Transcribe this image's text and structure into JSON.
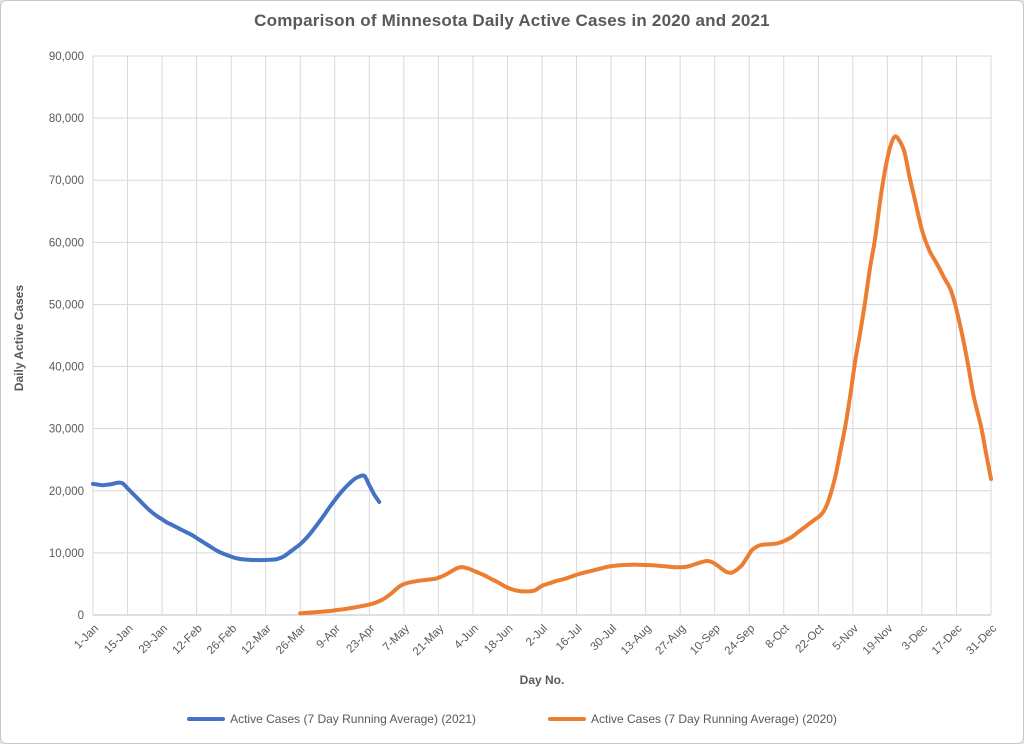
{
  "chart_data": {
    "type": "line",
    "title": "Comparison of Minnesota Daily Active Cases in 2020 and 2021",
    "xlabel": "Day No.",
    "ylabel": "Daily Active Cases",
    "grid": "both",
    "legend_position": "bottom",
    "x_axis": {
      "tick_labels": [
        "1-Jan",
        "15-Jan",
        "29-Jan",
        "12-Feb",
        "26-Feb",
        "12-Mar",
        "26-Mar",
        "9-Apr",
        "23-Apr",
        "7-May",
        "21-May",
        "4-Jun",
        "18-Jun",
        "2-Jul",
        "16-Jul",
        "30-Jul",
        "13-Aug",
        "27-Aug",
        "10-Sep",
        "24-Sep",
        "8-Oct",
        "22-Oct",
        "5-Nov",
        "19-Nov",
        "3-Dec",
        "17-Dec",
        "31-Dec"
      ],
      "tick_interval_days": 14,
      "range_days": [
        1,
        365
      ]
    },
    "y_axis": {
      "tick_labels": [
        "0",
        "10,000",
        "20,000",
        "30,000",
        "40,000",
        "50,000",
        "60,000",
        "70,000",
        "80,000",
        "90,000"
      ],
      "tick_values": [
        0,
        10000,
        20000,
        30000,
        40000,
        50000,
        60000,
        70000,
        80000,
        90000
      ],
      "range": [
        0,
        90000
      ]
    },
    "series": [
      {
        "name": "Active Cases (7 Day Running Average) (2021)",
        "color": "#4472C4",
        "points": [
          [
            1,
            21100
          ],
          [
            3,
            21000
          ],
          [
            5,
            20900
          ],
          [
            7,
            21000
          ],
          [
            9,
            21100
          ],
          [
            11,
            21300
          ],
          [
            13,
            21200
          ],
          [
            15,
            20400
          ],
          [
            17,
            19600
          ],
          [
            19,
            18800
          ],
          [
            21,
            18000
          ],
          [
            23,
            17200
          ],
          [
            25,
            16500
          ],
          [
            27,
            15900
          ],
          [
            29,
            15400
          ],
          [
            31,
            14900
          ],
          [
            33,
            14500
          ],
          [
            35,
            14100
          ],
          [
            37,
            13700
          ],
          [
            39,
            13300
          ],
          [
            41,
            12900
          ],
          [
            43,
            12400
          ],
          [
            45,
            11900
          ],
          [
            47,
            11400
          ],
          [
            49,
            10900
          ],
          [
            51,
            10400
          ],
          [
            53,
            10000
          ],
          [
            55,
            9700
          ],
          [
            57,
            9400
          ],
          [
            59,
            9150
          ],
          [
            61,
            9000
          ],
          [
            64,
            8900
          ],
          [
            67,
            8850
          ],
          [
            70,
            8850
          ],
          [
            73,
            8900
          ],
          [
            75,
            8950
          ],
          [
            77,
            9200
          ],
          [
            79,
            9600
          ],
          [
            81,
            10200
          ],
          [
            83,
            10800
          ],
          [
            85,
            11400
          ],
          [
            88,
            12600
          ],
          [
            91,
            14100
          ],
          [
            94,
            15700
          ],
          [
            97,
            17400
          ],
          [
            100,
            19000
          ],
          [
            103,
            20400
          ],
          [
            105,
            21200
          ],
          [
            107,
            21900
          ],
          [
            109,
            22300
          ],
          [
            111,
            22400
          ],
          [
            113,
            20900
          ],
          [
            115,
            19400
          ],
          [
            117,
            18200
          ]
        ]
      },
      {
        "name": "Active Cases (7 Day Running Average) (2020)",
        "color": "#ED7D31",
        "points": [
          [
            85,
            250
          ],
          [
            88,
            350
          ],
          [
            91,
            450
          ],
          [
            94,
            550
          ],
          [
            97,
            650
          ],
          [
            100,
            800
          ],
          [
            103,
            950
          ],
          [
            106,
            1150
          ],
          [
            109,
            1350
          ],
          [
            112,
            1600
          ],
          [
            115,
            1900
          ],
          [
            118,
            2400
          ],
          [
            120,
            2900
          ],
          [
            122,
            3500
          ],
          [
            124,
            4200
          ],
          [
            126,
            4800
          ],
          [
            128,
            5100
          ],
          [
            130,
            5300
          ],
          [
            133,
            5500
          ],
          [
            136,
            5650
          ],
          [
            139,
            5800
          ],
          [
            141,
            6000
          ],
          [
            144,
            6500
          ],
          [
            147,
            7200
          ],
          [
            149,
            7600
          ],
          [
            151,
            7700
          ],
          [
            153,
            7500
          ],
          [
            156,
            7000
          ],
          [
            159,
            6500
          ],
          [
            162,
            5900
          ],
          [
            165,
            5300
          ],
          [
            168,
            4600
          ],
          [
            171,
            4100
          ],
          [
            174,
            3850
          ],
          [
            177,
            3800
          ],
          [
            180,
            3950
          ],
          [
            183,
            4700
          ],
          [
            186,
            5100
          ],
          [
            189,
            5500
          ],
          [
            192,
            5800
          ],
          [
            195,
            6200
          ],
          [
            198,
            6600
          ],
          [
            201,
            6900
          ],
          [
            204,
            7200
          ],
          [
            207,
            7500
          ],
          [
            210,
            7800
          ],
          [
            213,
            7950
          ],
          [
            216,
            8050
          ],
          [
            219,
            8100
          ],
          [
            222,
            8100
          ],
          [
            225,
            8050
          ],
          [
            228,
            8000
          ],
          [
            231,
            7900
          ],
          [
            234,
            7800
          ],
          [
            237,
            7700
          ],
          [
            240,
            7700
          ],
          [
            243,
            7900
          ],
          [
            246,
            8300
          ],
          [
            248,
            8550
          ],
          [
            250,
            8700
          ],
          [
            252,
            8500
          ],
          [
            254,
            8000
          ],
          [
            256,
            7400
          ],
          [
            258,
            6900
          ],
          [
            260,
            6850
          ],
          [
            262,
            7300
          ],
          [
            264,
            8000
          ],
          [
            266,
            9200
          ],
          [
            268,
            10400
          ],
          [
            270,
            11000
          ],
          [
            272,
            11300
          ],
          [
            275,
            11400
          ],
          [
            278,
            11500
          ],
          [
            281,
            11900
          ],
          [
            284,
            12500
          ],
          [
            287,
            13400
          ],
          [
            290,
            14300
          ],
          [
            293,
            15200
          ],
          [
            296,
            16100
          ],
          [
            298,
            17300
          ],
          [
            300,
            19500
          ],
          [
            302,
            22500
          ],
          [
            304,
            26500
          ],
          [
            306,
            30500
          ],
          [
            308,
            35500
          ],
          [
            310,
            41000
          ],
          [
            312,
            45500
          ],
          [
            314,
            50500
          ],
          [
            316,
            56000
          ],
          [
            318,
            60500
          ],
          [
            320,
            66500
          ],
          [
            322,
            71500
          ],
          [
            324,
            75200
          ],
          [
            326,
            77000
          ],
          [
            328,
            76300
          ],
          [
            330,
            74400
          ],
          [
            332,
            70500
          ],
          [
            334,
            67100
          ],
          [
            337,
            62000
          ],
          [
            340,
            58700
          ],
          [
            343,
            56600
          ],
          [
            346,
            54300
          ],
          [
            349,
            52000
          ],
          [
            352,
            47500
          ],
          [
            355,
            41800
          ],
          [
            358,
            35200
          ],
          [
            361,
            30300
          ],
          [
            363,
            26000
          ],
          [
            365,
            21900
          ]
        ]
      }
    ]
  }
}
